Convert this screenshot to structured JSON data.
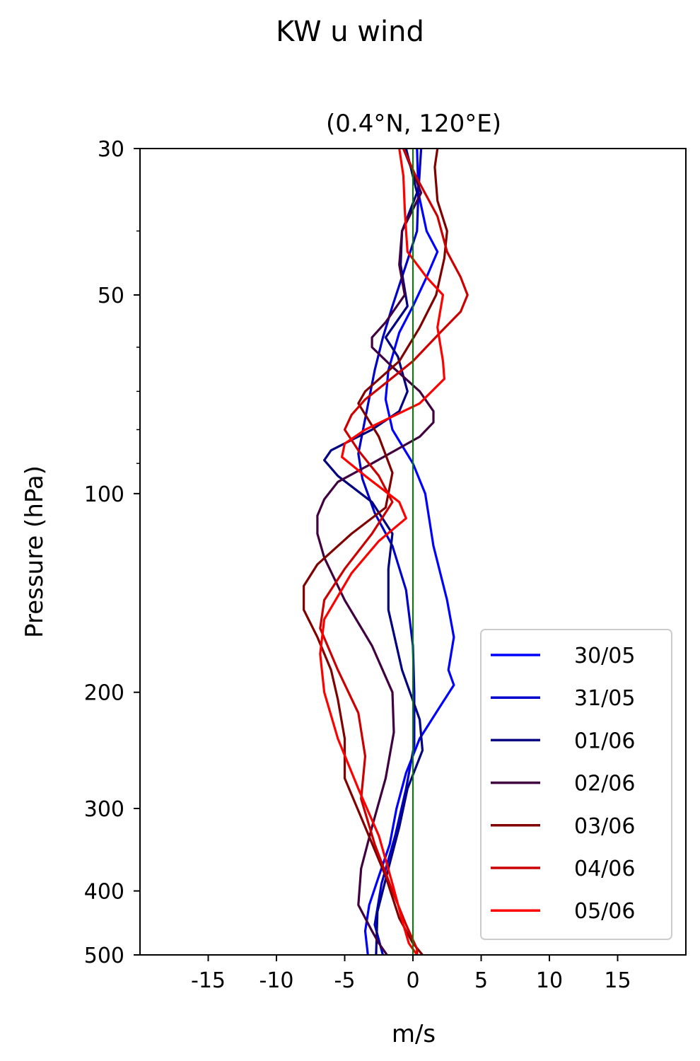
{
  "figure": {
    "suptitle": "KW u wind"
  },
  "chart_data": {
    "type": "line",
    "title": "(0.4°N, 120°E)",
    "xlabel": "m/s",
    "ylabel": "Pressure (hPa)",
    "xlim": [
      -20,
      20
    ],
    "ylim": [
      500,
      30
    ],
    "y_scale": "log",
    "x_ticks": [
      -15,
      -10,
      -5,
      0,
      5,
      10,
      15
    ],
    "x_tick_labels": [
      "-15",
      "-10",
      "-5",
      "0",
      "5",
      "10",
      "15"
    ],
    "y_ticks": [
      30,
      50,
      100,
      200,
      300,
      400,
      500
    ],
    "y_tick_labels": [
      "30",
      "50",
      "100",
      "200",
      "300",
      "400",
      "500"
    ],
    "reference_line": {
      "x": 0,
      "color": "#008000"
    },
    "legend": {
      "position": "lower right"
    },
    "grid": false,
    "series": [
      {
        "name": "30/05",
        "color": "#0000ff",
        "points": [
          [
            0.3,
            30
          ],
          [
            0.4,
            35
          ],
          [
            1.0,
            40
          ],
          [
            1.8,
            43
          ],
          [
            1.0,
            47
          ],
          [
            0.0,
            52
          ],
          [
            -1.0,
            57
          ],
          [
            -1.8,
            65
          ],
          [
            -2.0,
            72
          ],
          [
            -1.5,
            80
          ],
          [
            0.0,
            90
          ],
          [
            0.9,
            100
          ],
          [
            1.5,
            120
          ],
          [
            2.5,
            145
          ],
          [
            3.0,
            165
          ],
          [
            2.6,
            185
          ],
          [
            3.0,
            195
          ],
          [
            2.0,
            210
          ],
          [
            0.5,
            235
          ],
          [
            -0.5,
            265
          ],
          [
            -1.2,
            300
          ],
          [
            -1.7,
            340
          ],
          [
            -2.5,
            380
          ],
          [
            -3.2,
            420
          ],
          [
            -3.5,
            460
          ],
          [
            -3.3,
            500
          ]
        ]
      },
      {
        "name": "31/05",
        "color": "#0000cc",
        "points": [
          [
            0.6,
            30
          ],
          [
            0.4,
            35
          ],
          [
            0.3,
            40
          ],
          [
            -0.5,
            45
          ],
          [
            -1.5,
            52
          ],
          [
            -2.2,
            58
          ],
          [
            -2.8,
            65
          ],
          [
            -3.5,
            77
          ],
          [
            -4.0,
            87
          ],
          [
            -3.7,
            95
          ],
          [
            -2.8,
            107
          ],
          [
            -1.5,
            120
          ],
          [
            -0.5,
            140
          ],
          [
            0.0,
            170
          ],
          [
            0.1,
            200
          ],
          [
            0.1,
            240
          ],
          [
            -0.5,
            280
          ],
          [
            -1.3,
            330
          ],
          [
            -2.3,
            390
          ],
          [
            -2.8,
            450
          ],
          [
            -2.2,
            500
          ]
        ]
      },
      {
        "name": "01/06",
        "color": "#000080",
        "points": [
          [
            -0.5,
            30
          ],
          [
            0.3,
            35
          ],
          [
            -0.8,
            40
          ],
          [
            -0.9,
            45
          ],
          [
            -0.4,
            52
          ],
          [
            -2.0,
            58
          ],
          [
            -1.1,
            62
          ],
          [
            -0.4,
            70
          ],
          [
            -1.0,
            75
          ],
          [
            -3.0,
            80
          ],
          [
            -6.0,
            86
          ],
          [
            -6.5,
            89
          ],
          [
            -5.5,
            94
          ],
          [
            -3.0,
            103
          ],
          [
            -1.5,
            115
          ],
          [
            -1.8,
            130
          ],
          [
            -1.8,
            150
          ],
          [
            -0.8,
            185
          ],
          [
            0.5,
            220
          ],
          [
            0.7,
            245
          ],
          [
            -0.4,
            280
          ],
          [
            -1.0,
            320
          ],
          [
            -1.8,
            370
          ],
          [
            -2.6,
            430
          ],
          [
            -2.7,
            500
          ]
        ]
      },
      {
        "name": "02/06",
        "color": "#400040",
        "points": [
          [
            -0.7,
            30
          ],
          [
            0.6,
            35
          ],
          [
            -0.8,
            40
          ],
          [
            -1.0,
            45
          ],
          [
            -0.6,
            50
          ],
          [
            -2.0,
            55
          ],
          [
            -3.0,
            58
          ],
          [
            -3.0,
            60
          ],
          [
            -1.6,
            64
          ],
          [
            0.5,
            70
          ],
          [
            1.5,
            75
          ],
          [
            1.5,
            78
          ],
          [
            0.5,
            82
          ],
          [
            -3.0,
            90
          ],
          [
            -5.5,
            96
          ],
          [
            -6.5,
            102
          ],
          [
            -7.0,
            108
          ],
          [
            -7.0,
            115
          ],
          [
            -6.5,
            125
          ],
          [
            -5.0,
            145
          ],
          [
            -3.0,
            170
          ],
          [
            -1.5,
            200
          ],
          [
            -1.4,
            230
          ],
          [
            -2.0,
            270
          ],
          [
            -3.0,
            320
          ],
          [
            -3.8,
            370
          ],
          [
            -4.0,
            420
          ],
          [
            -3.0,
            460
          ],
          [
            -2.5,
            480
          ],
          [
            -1.9,
            500
          ]
        ]
      },
      {
        "name": "03/06",
        "color": "#800000",
        "points": [
          [
            1.8,
            30
          ],
          [
            1.6,
            32
          ],
          [
            1.8,
            36
          ],
          [
            2.5,
            40
          ],
          [
            2.3,
            44
          ],
          [
            1.7,
            50
          ],
          [
            0.5,
            56
          ],
          [
            -1.0,
            63
          ],
          [
            -3.5,
            70
          ],
          [
            -4.0,
            73
          ],
          [
            -2.5,
            82
          ],
          [
            -1.5,
            93
          ],
          [
            -2.0,
            105
          ],
          [
            -4.5,
            115
          ],
          [
            -7.0,
            128
          ],
          [
            -8.0,
            138
          ],
          [
            -8.0,
            150
          ],
          [
            -7.0,
            165
          ],
          [
            -6.0,
            185
          ],
          [
            -5.5,
            205
          ],
          [
            -5.0,
            235
          ],
          [
            -5.0,
            270
          ],
          [
            -3.5,
            320
          ],
          [
            -2.0,
            380
          ],
          [
            -1.0,
            440
          ],
          [
            0.0,
            480
          ],
          [
            0.7,
            500
          ]
        ]
      },
      {
        "name": "04/06",
        "color": "#cc0000",
        "points": [
          [
            -0.7,
            30
          ],
          [
            0.2,
            33
          ],
          [
            1.8,
            38
          ],
          [
            2.5,
            43
          ],
          [
            3.5,
            47
          ],
          [
            4.0,
            50
          ],
          [
            3.5,
            53
          ],
          [
            2.0,
            57
          ],
          [
            0.0,
            63
          ],
          [
            -2.0,
            68
          ],
          [
            -3.5,
            72
          ],
          [
            -4.5,
            76
          ],
          [
            -5.0,
            80
          ],
          [
            -4.0,
            86
          ],
          [
            -2.5,
            94
          ],
          [
            -1.5,
            103
          ],
          [
            -3.0,
            115
          ],
          [
            -5.0,
            130
          ],
          [
            -6.5,
            145
          ],
          [
            -6.8,
            160
          ],
          [
            -5.5,
            185
          ],
          [
            -4.0,
            215
          ],
          [
            -3.5,
            250
          ],
          [
            -3.8,
            290
          ],
          [
            -2.8,
            340
          ],
          [
            -1.5,
            400
          ],
          [
            -0.5,
            450
          ],
          [
            0.3,
            490
          ],
          [
            0.3,
            500
          ]
        ]
      },
      {
        "name": "05/06",
        "color": "#ff0000",
        "points": [
          [
            -1.0,
            30
          ],
          [
            -0.7,
            33
          ],
          [
            -0.6,
            37
          ],
          [
            -0.5,
            40
          ],
          [
            -0.4,
            43
          ],
          [
            1.0,
            47
          ],
          [
            2.2,
            50
          ],
          [
            1.8,
            56
          ],
          [
            2.2,
            63
          ],
          [
            2.3,
            67
          ],
          [
            0.5,
            73
          ],
          [
            -3.5,
            80
          ],
          [
            -5.0,
            84
          ],
          [
            -5.2,
            88
          ],
          [
            -3.5,
            94
          ],
          [
            -1.0,
            103
          ],
          [
            -0.5,
            109
          ],
          [
            -2.5,
            118
          ],
          [
            -4.5,
            132
          ],
          [
            -6.5,
            155
          ],
          [
            -6.8,
            175
          ],
          [
            -6.5,
            200
          ],
          [
            -5.5,
            235
          ],
          [
            -4.0,
            280
          ],
          [
            -2.5,
            330
          ],
          [
            -1.5,
            390
          ],
          [
            -0.7,
            450
          ],
          [
            -0.3,
            480
          ],
          [
            0.3,
            500
          ]
        ]
      }
    ]
  }
}
